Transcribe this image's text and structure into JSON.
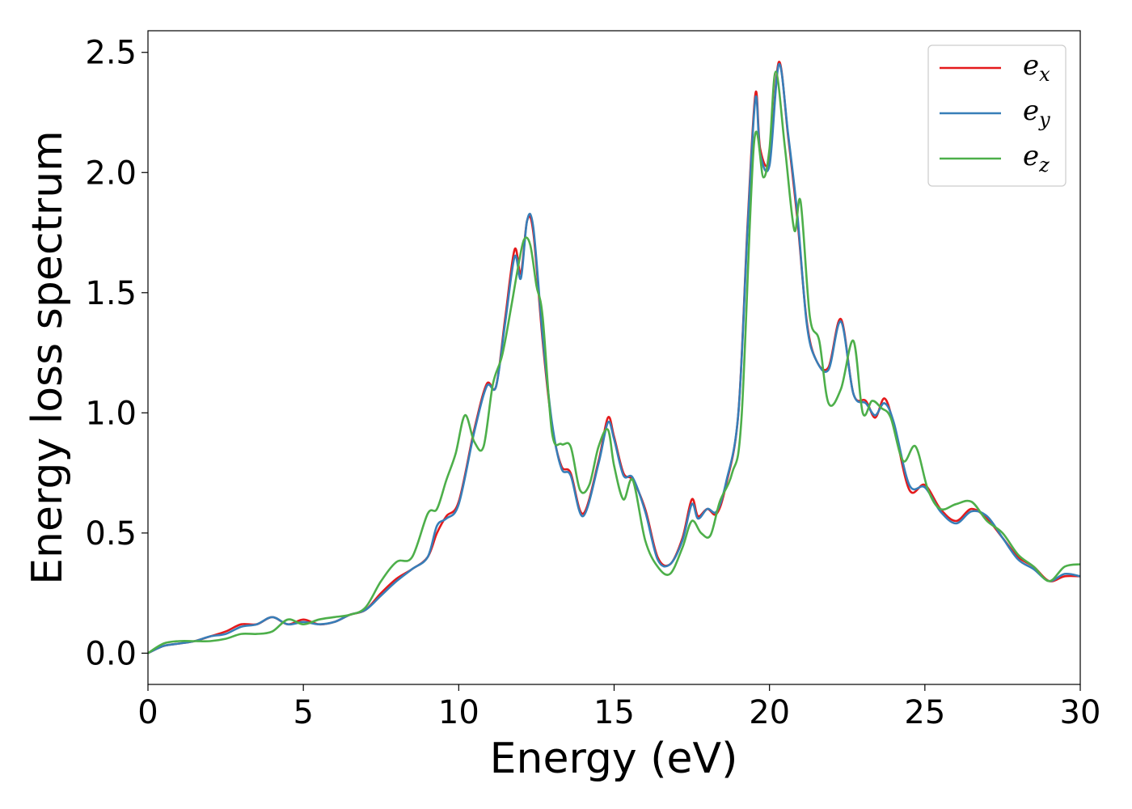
{
  "chart_data": {
    "type": "line",
    "title": "",
    "xlabel": "Energy (eV)",
    "ylabel": "Energy loss spectrum",
    "xlim": [
      0,
      30
    ],
    "ylim": [
      -0.13,
      2.59
    ],
    "xticks": [
      "0",
      "5",
      "10",
      "15",
      "20",
      "25",
      "30"
    ],
    "yticks": [
      "0.0",
      "0.5",
      "1.0",
      "1.5",
      "2.0",
      "2.5"
    ],
    "grid": false,
    "legend_position": "top-right",
    "series": [
      {
        "name": "e_x",
        "base": "e",
        "sub": "x",
        "color": "#e41a1c",
        "x": [
          0,
          0.5,
          1,
          1.5,
          2,
          2.5,
          3,
          3.5,
          4,
          4.5,
          5,
          5.5,
          6,
          6.5,
          7,
          7.5,
          8,
          8.5,
          9,
          9.3,
          9.6,
          10,
          10.5,
          10.9,
          11.2,
          11.5,
          11.8,
          12,
          12.2,
          12.4,
          12.7,
          13,
          13.3,
          13.6,
          14,
          14.5,
          14.8,
          15,
          15.3,
          15.6,
          16,
          16.4,
          16.8,
          17.2,
          17.5,
          17.7,
          18,
          18.3,
          18.6,
          19,
          19.3,
          19.55,
          19.7,
          20,
          20.3,
          20.6,
          20.9,
          21.2,
          21.5,
          21.9,
          22.3,
          22.7,
          23.1,
          23.4,
          23.7,
          24,
          24.5,
          25,
          25.5,
          26,
          26.5,
          27,
          27.5,
          28,
          28.5,
          29,
          29.5,
          30
        ],
        "y": [
          0,
          0.03,
          0.04,
          0.05,
          0.07,
          0.09,
          0.12,
          0.12,
          0.15,
          0.12,
          0.14,
          0.12,
          0.13,
          0.16,
          0.18,
          0.25,
          0.31,
          0.35,
          0.4,
          0.5,
          0.57,
          0.63,
          0.93,
          1.12,
          1.11,
          1.4,
          1.68,
          1.58,
          1.8,
          1.75,
          1.3,
          0.95,
          0.78,
          0.75,
          0.58,
          0.8,
          0.98,
          0.9,
          0.75,
          0.72,
          0.6,
          0.4,
          0.37,
          0.48,
          0.64,
          0.57,
          0.6,
          0.58,
          0.7,
          1.0,
          1.8,
          2.33,
          2.1,
          2.05,
          2.46,
          2.15,
          1.8,
          1.38,
          1.22,
          1.19,
          1.39,
          1.08,
          1.05,
          0.98,
          1.06,
          0.95,
          0.68,
          0.7,
          0.6,
          0.55,
          0.6,
          0.56,
          0.48,
          0.4,
          0.36,
          0.3,
          0.32,
          0.32
        ]
      },
      {
        "name": "e_y",
        "base": "e",
        "sub": "y",
        "color": "#377eb8",
        "x": [
          0,
          0.5,
          1,
          1.5,
          2,
          2.5,
          3,
          3.5,
          4,
          4.5,
          5,
          5.5,
          6,
          6.5,
          7,
          7.5,
          8,
          8.5,
          9,
          9.3,
          9.6,
          10,
          10.5,
          10.9,
          11.2,
          11.5,
          11.8,
          12,
          12.2,
          12.4,
          12.7,
          13,
          13.3,
          13.6,
          14,
          14.5,
          14.8,
          15,
          15.3,
          15.6,
          16,
          16.4,
          16.8,
          17.2,
          17.5,
          17.7,
          18,
          18.3,
          18.6,
          19,
          19.3,
          19.55,
          19.7,
          20,
          20.3,
          20.6,
          20.9,
          21.2,
          21.5,
          21.9,
          22.3,
          22.7,
          23.1,
          23.4,
          23.7,
          24,
          24.5,
          25,
          25.5,
          26,
          26.5,
          27,
          27.5,
          28,
          28.5,
          29,
          29.5,
          30
        ],
        "y": [
          0,
          0.03,
          0.04,
          0.05,
          0.07,
          0.08,
          0.11,
          0.12,
          0.15,
          0.12,
          0.13,
          0.12,
          0.13,
          0.16,
          0.18,
          0.24,
          0.3,
          0.35,
          0.4,
          0.53,
          0.56,
          0.62,
          0.92,
          1.11,
          1.11,
          1.38,
          1.65,
          1.56,
          1.8,
          1.77,
          1.32,
          0.96,
          0.77,
          0.74,
          0.57,
          0.79,
          0.96,
          0.89,
          0.74,
          0.73,
          0.59,
          0.39,
          0.37,
          0.47,
          0.62,
          0.56,
          0.6,
          0.59,
          0.71,
          1.0,
          1.78,
          2.31,
          2.08,
          2.03,
          2.45,
          2.16,
          1.82,
          1.37,
          1.22,
          1.18,
          1.38,
          1.08,
          1.04,
          0.99,
          1.04,
          0.96,
          0.7,
          0.69,
          0.59,
          0.54,
          0.59,
          0.57,
          0.48,
          0.39,
          0.35,
          0.3,
          0.33,
          0.32
        ]
      },
      {
        "name": "e_z",
        "base": "e",
        "sub": "z",
        "color": "#4daf4a",
        "x": [
          0,
          0.5,
          1,
          1.5,
          2,
          2.5,
          3,
          3.5,
          4,
          4.5,
          5,
          5.5,
          6,
          6.5,
          7,
          7.5,
          8,
          8.5,
          9,
          9.3,
          9.6,
          9.9,
          10.2,
          10.5,
          10.8,
          11.1,
          11.4,
          11.7,
          11.9,
          12.1,
          12.3,
          12.5,
          12.7,
          13,
          13.3,
          13.6,
          13.9,
          14.2,
          14.5,
          14.8,
          15,
          15.3,
          15.6,
          16,
          16.4,
          16.8,
          17.2,
          17.5,
          17.8,
          18.1,
          18.4,
          18.8,
          19.1,
          19.5,
          19.8,
          20,
          20.2,
          20.5,
          20.8,
          21,
          21.3,
          21.6,
          21.9,
          22.3,
          22.7,
          23,
          23.3,
          23.6,
          23.9,
          24.3,
          24.7,
          25.1,
          25.5,
          26,
          26.5,
          27,
          27.5,
          28,
          28.5,
          29,
          29.5,
          30
        ],
        "y": [
          0,
          0.04,
          0.05,
          0.05,
          0.05,
          0.06,
          0.08,
          0.08,
          0.09,
          0.14,
          0.12,
          0.14,
          0.15,
          0.16,
          0.19,
          0.3,
          0.38,
          0.4,
          0.58,
          0.6,
          0.72,
          0.83,
          0.99,
          0.88,
          0.86,
          1.12,
          1.24,
          1.45,
          1.6,
          1.72,
          1.7,
          1.53,
          1.4,
          0.92,
          0.87,
          0.86,
          0.68,
          0.7,
          0.86,
          0.93,
          0.78,
          0.64,
          0.72,
          0.47,
          0.36,
          0.33,
          0.44,
          0.55,
          0.5,
          0.49,
          0.63,
          0.75,
          0.98,
          2.12,
          1.98,
          2.1,
          2.42,
          2.1,
          1.76,
          1.88,
          1.4,
          1.3,
          1.04,
          1.1,
          1.3,
          1.0,
          1.05,
          1.02,
          0.98,
          0.8,
          0.86,
          0.68,
          0.6,
          0.62,
          0.63,
          0.55,
          0.5,
          0.41,
          0.36,
          0.3,
          0.36,
          0.37
        ]
      }
    ]
  }
}
